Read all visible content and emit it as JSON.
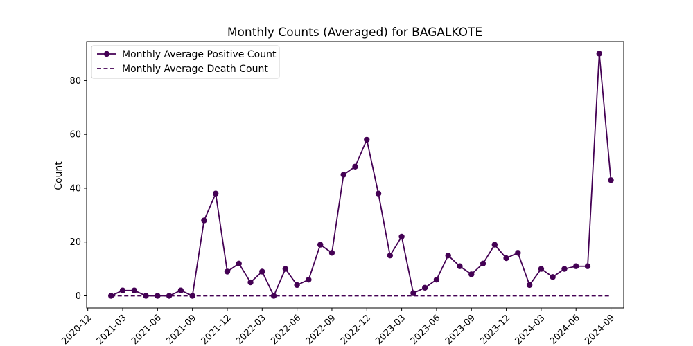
{
  "chart_data": {
    "type": "line",
    "title": "Monthly Counts (Averaged) for BAGALKOTE",
    "xlabel": "",
    "ylabel": "Count",
    "x": [
      "2021-02",
      "2021-03",
      "2021-04",
      "2021-05",
      "2021-06",
      "2021-07",
      "2021-08",
      "2021-09",
      "2021-10",
      "2021-11",
      "2021-12",
      "2022-01",
      "2022-02",
      "2022-03",
      "2022-04",
      "2022-05",
      "2022-06",
      "2022-07",
      "2022-08",
      "2022-09",
      "2022-10",
      "2022-11",
      "2022-12",
      "2023-01",
      "2023-02",
      "2023-03",
      "2023-04",
      "2023-05",
      "2023-06",
      "2023-07",
      "2023-08",
      "2023-09",
      "2023-10",
      "2023-11",
      "2023-12",
      "2024-01",
      "2024-02",
      "2024-03",
      "2024-04",
      "2024-05",
      "2024-06",
      "2024-07",
      "2024-08",
      "2024-09"
    ],
    "series": [
      {
        "name": "Monthly Average Positive Count",
        "style": "solid",
        "marker": "circle",
        "values": [
          0,
          2,
          2,
          0,
          0,
          0,
          2,
          0,
          28,
          38,
          9,
          12,
          5,
          9,
          0,
          10,
          4,
          6,
          19,
          16,
          45,
          48,
          58,
          38,
          15,
          22,
          1,
          3,
          6,
          15,
          11,
          8,
          12,
          19,
          14,
          16,
          4,
          10,
          7,
          10,
          11,
          11,
          90,
          43
        ]
      },
      {
        "name": "Monthly Average Death Count",
        "style": "dashed",
        "marker": "none",
        "values": [
          0,
          0,
          0,
          0,
          0,
          0,
          0,
          0,
          0,
          0,
          0,
          0,
          0,
          0,
          0,
          0,
          0,
          0,
          0,
          0,
          0,
          0,
          0,
          0,
          0,
          0,
          0,
          0,
          0,
          0,
          0,
          0,
          0,
          0,
          0,
          0,
          0,
          0,
          0,
          0,
          0,
          0,
          0,
          0
        ]
      }
    ],
    "xticks": [
      "2020-12",
      "2021-03",
      "2021-06",
      "2021-09",
      "2021-12",
      "2022-03",
      "2022-06",
      "2022-09",
      "2022-12",
      "2023-03",
      "2023-06",
      "2023-09",
      "2023-12",
      "2024-03",
      "2024-06",
      "2024-09"
    ],
    "yticks": [
      0,
      20,
      40,
      60,
      80
    ],
    "xlim": [
      "2021-01",
      "2024-09"
    ],
    "ylim": [
      -4.5,
      94.5
    ],
    "grid": false,
    "legend_position": "top-left",
    "line_color": "#440154"
  }
}
